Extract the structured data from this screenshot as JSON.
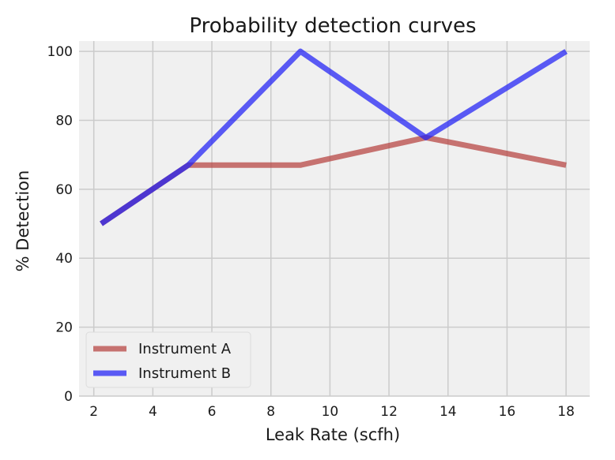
{
  "chart_data": {
    "type": "line",
    "title": "Probability detection curves",
    "xlabel": "Leak Rate (scfh)",
    "ylabel": "% Detection",
    "xlim": [
      1.5,
      18.8
    ],
    "ylim": [
      0,
      103
    ],
    "xticks": [
      2,
      4,
      6,
      8,
      10,
      12,
      14,
      16,
      18
    ],
    "yticks": [
      0,
      20,
      40,
      60,
      80,
      100
    ],
    "grid": true,
    "legend_position": "lower-left",
    "series": [
      {
        "name": "Instrument A",
        "color": "#b5413e",
        "x": [
          2.25,
          5.2,
          9.0,
          13.25,
          18.0
        ],
        "y": [
          50,
          67,
          67,
          75,
          67
        ]
      },
      {
        "name": "Instrument B",
        "color": "#1f1ff5",
        "x": [
          2.25,
          5.2,
          9.0,
          13.25,
          18.0
        ],
        "y": [
          50,
          67,
          100,
          75,
          100
        ]
      }
    ]
  }
}
